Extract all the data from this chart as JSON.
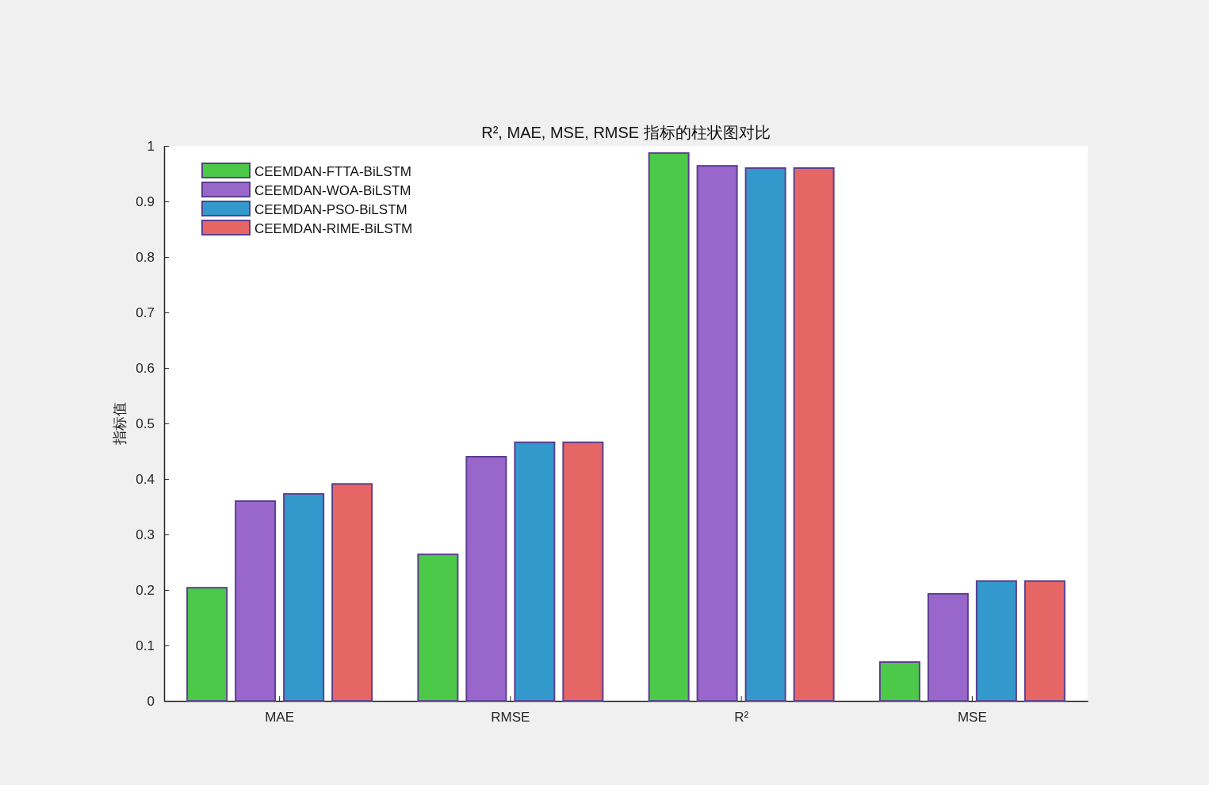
{
  "chart_data": {
    "type": "bar",
    "title": "R², MAE, MSE, RMSE 指标的柱状图对比",
    "ylabel": "指标值",
    "categories": [
      "MAE",
      "RMSE",
      "R²",
      "MSE"
    ],
    "series": [
      {
        "name": "CEEMDAN-FTTA-BiLSTM",
        "color": "#4dc94a",
        "values": [
          0.204,
          0.264,
          0.987,
          0.07
        ]
      },
      {
        "name": "CEEMDAN-WOA-BiLSTM",
        "color": "#9966cc",
        "values": [
          0.36,
          0.44,
          0.964,
          0.193
        ]
      },
      {
        "name": "CEEMDAN-PSO-BiLSTM",
        "color": "#3399cc",
        "values": [
          0.373,
          0.466,
          0.96,
          0.216
        ]
      },
      {
        "name": "CEEMDAN-RIME-BiLSTM",
        "color": "#e66666",
        "values": [
          0.391,
          0.466,
          0.96,
          0.216
        ]
      }
    ],
    "ylim": [
      0,
      1
    ],
    "yticks": [
      0,
      0.1,
      0.2,
      0.3,
      0.4,
      0.5,
      0.6,
      0.7,
      0.8,
      0.9,
      1
    ],
    "legend": "top left"
  }
}
